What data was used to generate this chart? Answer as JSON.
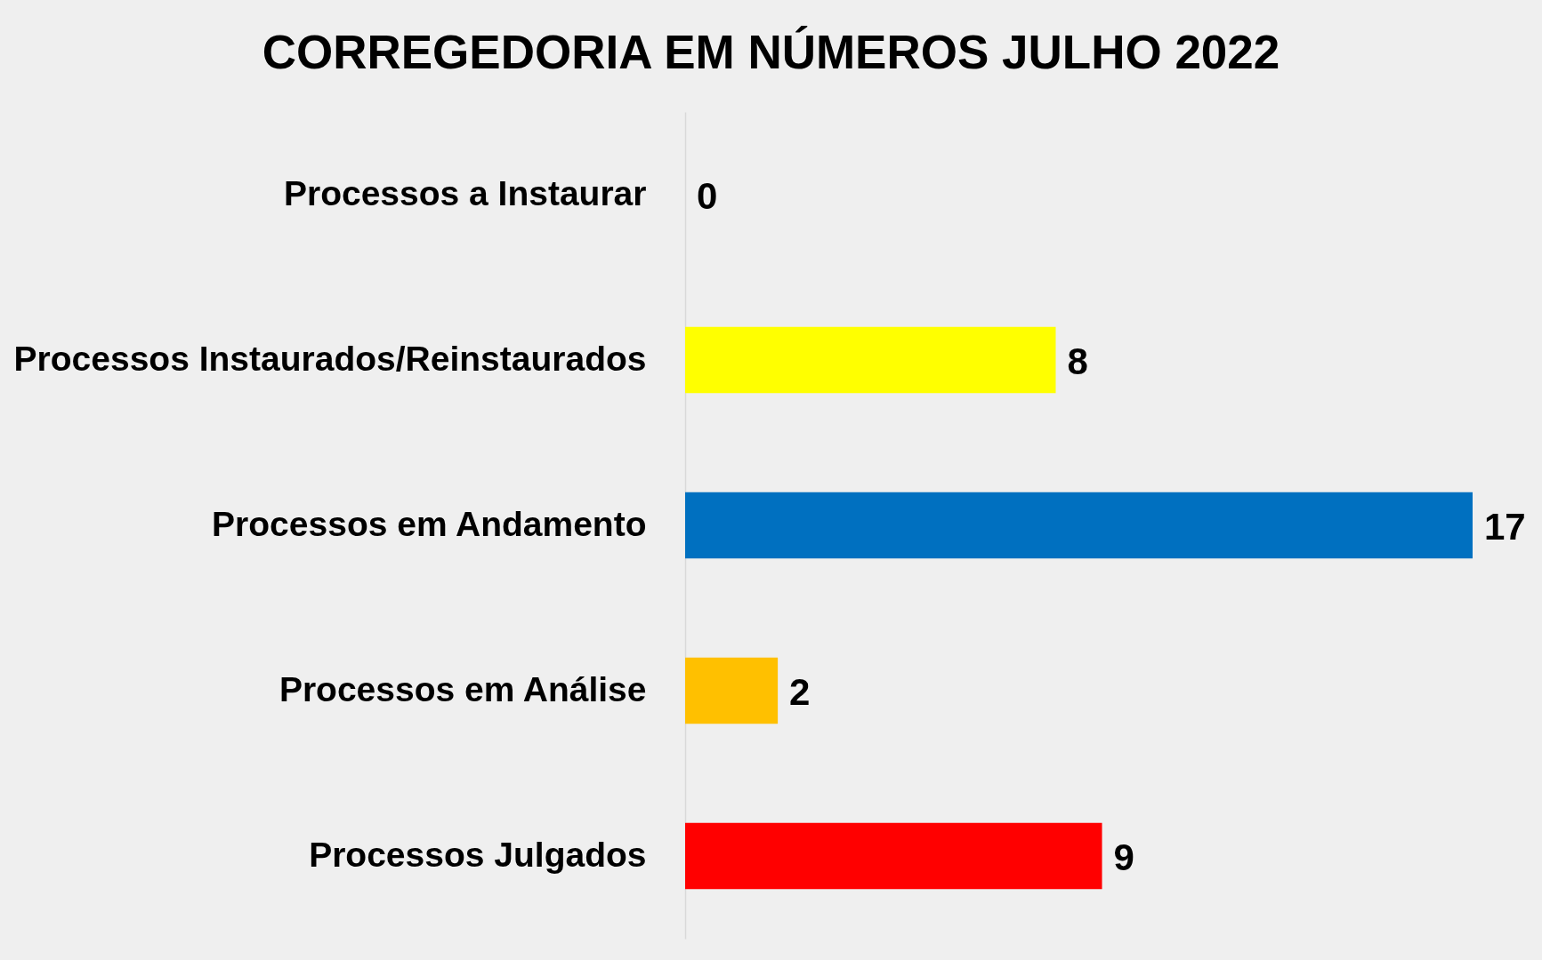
{
  "chart_data": {
    "type": "bar",
    "orientation": "horizontal",
    "title": "CORREGEDORIA EM NÚMEROS JULHO 2022",
    "categories": [
      "Processos a Instaurar",
      "Processos Instaurados/Reinstaurados",
      "Processos em Andamento",
      "Processos em Análise",
      "Processos Julgados"
    ],
    "values": [
      0,
      8,
      17,
      2,
      9
    ],
    "colors": [
      null,
      "#ffff00",
      "#0070c0",
      "#ffc000",
      "#ff0000"
    ],
    "data_labels": true,
    "legend": false,
    "tick_labels": "y"
  }
}
